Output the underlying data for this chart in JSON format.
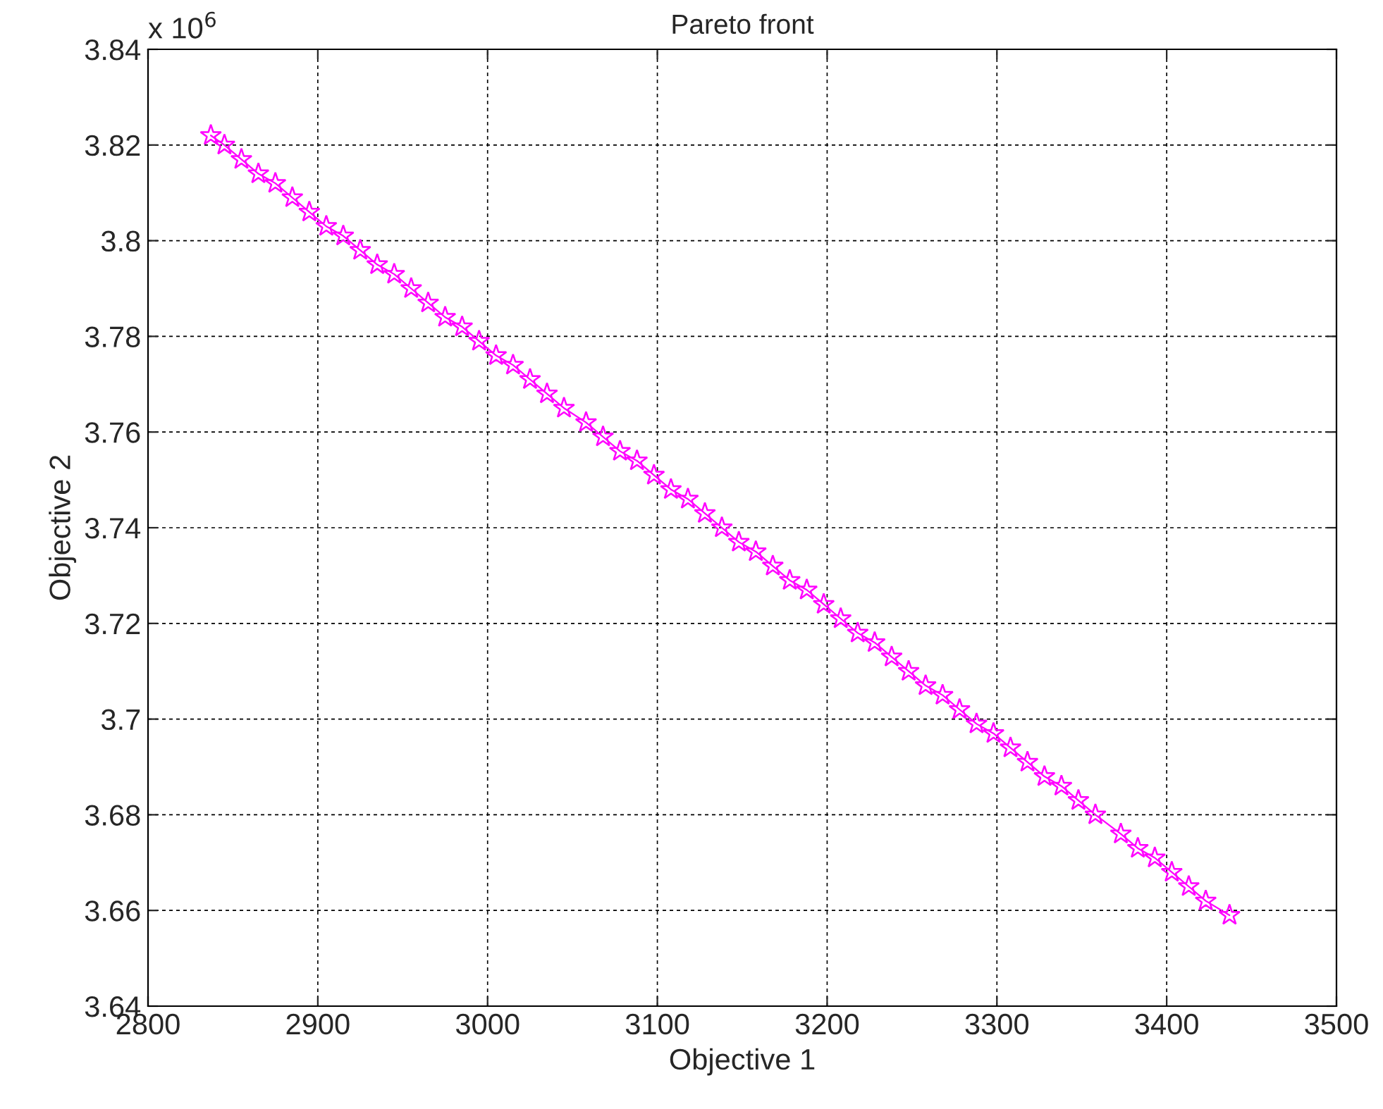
{
  "chart_data": {
    "type": "line",
    "title": "Pareto front",
    "xlabel": "Objective 1",
    "ylabel": "Objective 2",
    "annotations": [
      "x 10$^{6}$"
    ],
    "xlim": [
      2800,
      3500
    ],
    "xticks": [
      2800,
      2900,
      3000,
      3100,
      3200,
      3300,
      3400,
      3500
    ],
    "ylim": [
      3.64,
      3.84
    ],
    "yticks": [
      3.64,
      3.66,
      3.68,
      3.7,
      3.72,
      3.74,
      3.76,
      3.78,
      3.8,
      3.82,
      3.84
    ],
    "grid": true,
    "marker": "star",
    "line_style": "solid",
    "series": [
      {
        "color": "#ff00ff",
        "x": [
          2837,
          2845,
          2855,
          2865,
          2875,
          2885,
          2895,
          2905,
          2915,
          2925,
          2935,
          2945,
          2955,
          2965,
          2975,
          2985,
          2995,
          3005,
          3015,
          3025,
          3035,
          3045,
          3058,
          3068,
          3078,
          3088,
          3098,
          3108,
          3118,
          3128,
          3138,
          3148,
          3158,
          3168,
          3178,
          3188,
          3198,
          3208,
          3218,
          3228,
          3238,
          3248,
          3258,
          3268,
          3278,
          3288,
          3298,
          3308,
          3318,
          3328,
          3338,
          3348,
          3358,
          3373,
          3383,
          3393,
          3403,
          3413,
          3423,
          3437
        ],
        "values": [
          3.822,
          3.82,
          3.817,
          3.814,
          3.812,
          3.809,
          3.806,
          3.803,
          3.801,
          3.798,
          3.795,
          3.793,
          3.79,
          3.787,
          3.784,
          3.782,
          3.779,
          3.776,
          3.774,
          3.771,
          3.768,
          3.765,
          3.762,
          3.759,
          3.756,
          3.754,
          3.751,
          3.748,
          3.746,
          3.743,
          3.74,
          3.737,
          3.735,
          3.732,
          3.729,
          3.727,
          3.724,
          3.721,
          3.718,
          3.716,
          3.713,
          3.71,
          3.707,
          3.705,
          3.702,
          3.699,
          3.697,
          3.694,
          3.691,
          3.688,
          3.686,
          3.683,
          3.68,
          3.676,
          3.673,
          3.671,
          3.668,
          3.665,
          3.662,
          3.659
        ]
      }
    ]
  }
}
